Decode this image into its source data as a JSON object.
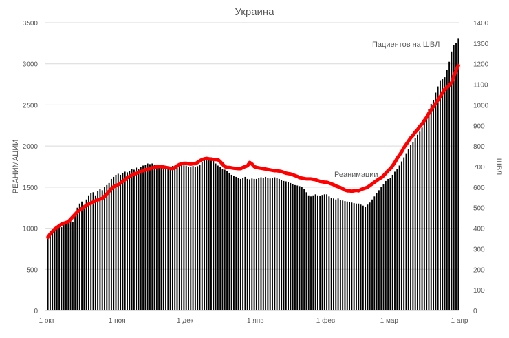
{
  "chart_data": {
    "type": "bar+line",
    "title": "Украина",
    "ylabel": "РЕАНИМАЦИИ",
    "y2label": "ШВЛ",
    "ylim": [
      0,
      3500
    ],
    "y2lim": [
      0,
      1400
    ],
    "yticks": [
      0,
      500,
      1000,
      1500,
      2000,
      2500,
      3000,
      3500
    ],
    "y2ticks": [
      0,
      100,
      200,
      300,
      400,
      500,
      600,
      700,
      800,
      900,
      1000,
      1100,
      1200,
      1300,
      1400
    ],
    "xticks": [
      "1 окт",
      "1 ноя",
      "1 дек",
      "1 янв",
      "1 фев",
      "1 мар",
      "1 апр"
    ],
    "grid": true,
    "annotations": {
      "bars": "Пациентов на ШВЛ",
      "line": "Реанимации"
    },
    "colors": {
      "bars": "#000000",
      "line": "#ff0000",
      "grid": "#d9d9d9"
    },
    "series": [
      {
        "name": "Пациентов на ШВЛ",
        "type": "bar",
        "axis": "right",
        "values": [
          355,
          370,
          385,
          395,
          400,
          410,
          405,
          420,
          430,
          440,
          445,
          430,
          470,
          500,
          520,
          530,
          510,
          540,
          560,
          570,
          575,
          560,
          580,
          590,
          585,
          600,
          610,
          620,
          640,
          650,
          660,
          665,
          660,
          670,
          675,
          672,
          680,
          690,
          685,
          695,
          690,
          700,
          705,
          710,
          715,
          712,
          715,
          710,
          705,
          700,
          705,
          700,
          702,
          698,
          700,
          703,
          705,
          700,
          702,
          705,
          706,
          705,
          700,
          698,
          703,
          700,
          702,
          710,
          720,
          730,
          740,
          735,
          745,
          730,
          715,
          705,
          700,
          690,
          685,
          680,
          670,
          660,
          655,
          650,
          645,
          640,
          645,
          650,
          640,
          638,
          642,
          640,
          640,
          645,
          648,
          645,
          650,
          645,
          642,
          645,
          648,
          645,
          640,
          635,
          630,
          628,
          625,
          620,
          615,
          610,
          608,
          605,
          600,
          590,
          575,
          560,
          555,
          560,
          565,
          560,
          558,
          562,
          565,
          565,
          555,
          548,
          545,
          540,
          545,
          538,
          535,
          532,
          530,
          528,
          525,
          522,
          520,
          520,
          515,
          510,
          505,
          515,
          525,
          540,
          555,
          570,
          585,
          600,
          615,
          630,
          640,
          645,
          660,
          675,
          690,
          705,
          725,
          745,
          765,
          785,
          805,
          820,
          840,
          855,
          870,
          890,
          920,
          950,
          980,
          1005,
          1025,
          1060,
          1090,
          1120,
          1125,
          1135,
          1170,
          1210,
          1260,
          1290,
          1300,
          1325
        ]
      },
      {
        "name": "Реанимации",
        "type": "line",
        "axis": "left",
        "values": [
          890,
          930,
          960,
          990,
          1010,
          1030,
          1050,
          1060,
          1070,
          1080,
          1110,
          1140,
          1170,
          1200,
          1220,
          1240,
          1260,
          1280,
          1295,
          1305,
          1320,
          1335,
          1345,
          1355,
          1365,
          1390,
          1420,
          1450,
          1480,
          1505,
          1520,
          1530,
          1550,
          1570,
          1590,
          1615,
          1630,
          1645,
          1660,
          1670,
          1680,
          1690,
          1700,
          1710,
          1718,
          1725,
          1735,
          1742,
          1748,
          1750,
          1750,
          1745,
          1740,
          1735,
          1730,
          1725,
          1740,
          1760,
          1775,
          1785,
          1790,
          1790,
          1785,
          1780,
          1785,
          1785,
          1800,
          1820,
          1835,
          1845,
          1850,
          1845,
          1840,
          1838,
          1835,
          1835,
          1810,
          1780,
          1750,
          1740,
          1740,
          1735,
          1730,
          1728,
          1725,
          1725,
          1740,
          1750,
          1760,
          1800,
          1780,
          1750,
          1740,
          1735,
          1730,
          1725,
          1720,
          1715,
          1710,
          1705,
          1700,
          1700,
          1695,
          1690,
          1680,
          1670,
          1665,
          1660,
          1650,
          1640,
          1630,
          1615,
          1610,
          1605,
          1600,
          1600,
          1600,
          1595,
          1590,
          1580,
          1570,
          1565,
          1560,
          1560,
          1550,
          1540,
          1530,
          1515,
          1505,
          1495,
          1480,
          1465,
          1455,
          1455,
          1450,
          1455,
          1460,
          1455,
          1470,
          1480,
          1490,
          1500,
          1520,
          1540,
          1560,
          1580,
          1600,
          1615,
          1640,
          1670,
          1700,
          1725,
          1760,
          1800,
          1850,
          1890,
          1930,
          1980,
          2020,
          2060,
          2100,
          2130,
          2170,
          2200,
          2240,
          2270,
          2310,
          2350,
          2400,
          2440,
          2480,
          2520,
          2560,
          2600,
          2650,
          2690,
          2710,
          2740,
          2770,
          2850,
          2920,
          2980
        ]
      }
    ]
  }
}
